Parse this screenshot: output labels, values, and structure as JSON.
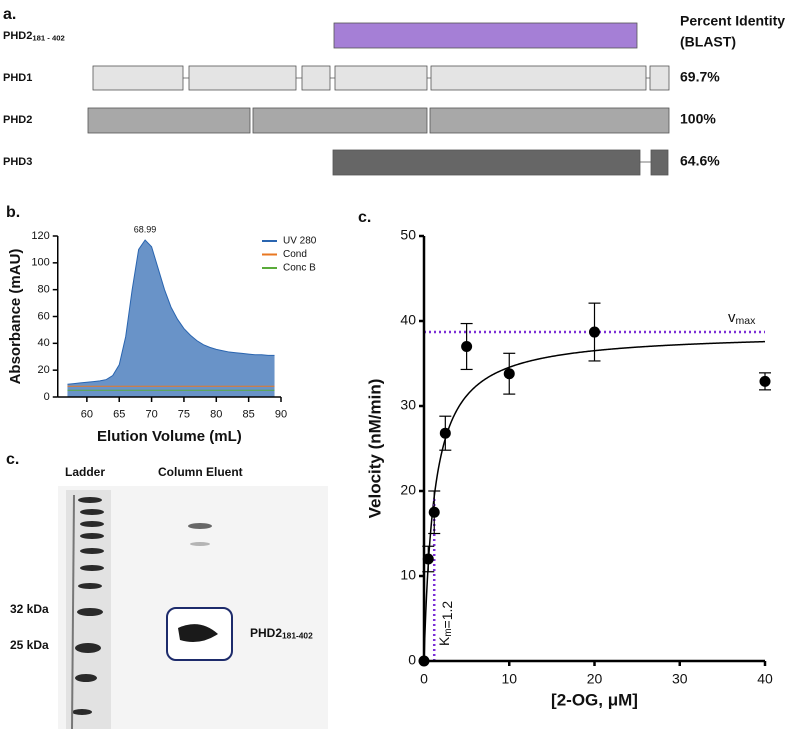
{
  "panel_labels": [
    "a.",
    "b.",
    "c.",
    "c."
  ],
  "domain_figure": {
    "header": [
      "Percent Identity",
      "(BLAST)"
    ],
    "rows": [
      {
        "name": "PHD2",
        "sub": "181 - 402"
      },
      {
        "name": "PHD1",
        "identity": "69.7%"
      },
      {
        "name": "PHD2",
        "identity": "100%"
      },
      {
        "name": "PHD3",
        "identity": "64.6%"
      }
    ]
  },
  "gel": {
    "columns": [
      "Ladder",
      "Column Eluent"
    ],
    "markers": [
      "32 kDa",
      "25 kDa"
    ],
    "band_label": {
      "name": "PHD2",
      "sub": "181-402"
    }
  },
  "chart_data": [
    {
      "type": "area",
      "x_label": "Elution Volume (mL)",
      "y_label": "Absorbance (mAU)",
      "xlim": [
        55.5,
        90
      ],
      "xticks": [
        60,
        65,
        70,
        75,
        80,
        85,
        90
      ],
      "ylim": [
        0,
        120
      ],
      "yticks": [
        0,
        20,
        40,
        60,
        80,
        100,
        120
      ],
      "legend": "upper right",
      "annotation": {
        "text": "68.99",
        "x": 68.99
      },
      "x": [
        57,
        58,
        59,
        60,
        61,
        62,
        63,
        64,
        65,
        66,
        67,
        68,
        69,
        70,
        71,
        72,
        73,
        74,
        75,
        76,
        77,
        78,
        79,
        80,
        81,
        82,
        83,
        84,
        85,
        86,
        87,
        88,
        89
      ],
      "series": [
        {
          "name": "UV 280",
          "color": "#2a65b0",
          "kind": "area",
          "values": [
            9.5,
            10,
            10.5,
            11,
            11.5,
            12,
            13,
            16,
            24,
            45,
            80,
            110,
            117,
            112,
            96,
            80,
            67,
            58,
            51,
            46,
            42,
            39,
            37,
            35.5,
            34.5,
            33.5,
            33,
            32.5,
            32,
            31.5,
            31.5,
            31,
            31
          ]
        },
        {
          "name": "Cond",
          "color": "#e87722",
          "kind": "line",
          "values": [
            8,
            8,
            8,
            8,
            8,
            8,
            8,
            8,
            8,
            8,
            8,
            8,
            8,
            8,
            8,
            8,
            8,
            8,
            8,
            8,
            8,
            8,
            8,
            8,
            8,
            8,
            8,
            8,
            8,
            8,
            8,
            8,
            8
          ]
        },
        {
          "name": "Conc B",
          "color": "#5aab3a",
          "kind": "line",
          "values": [
            5,
            5,
            5,
            5,
            5,
            5,
            5,
            5,
            5,
            5,
            5,
            5,
            5,
            5,
            5,
            5,
            5,
            5,
            5,
            5,
            5,
            5,
            5,
            5,
            5,
            5,
            5,
            5,
            5,
            5,
            5,
            5,
            5
          ]
        }
      ]
    },
    {
      "type": "scatter",
      "x_label": "[2-OG, μM]",
      "y_label": "Velocity (nM/min)",
      "xlim": [
        0,
        40
      ],
      "xticks": [
        0,
        10,
        20,
        30,
        40
      ],
      "ylim": [
        0,
        50
      ],
      "yticks": [
        0,
        10,
        20,
        30,
        40,
        50
      ],
      "x": [
        0,
        0.5,
        1.2,
        2.5,
        5,
        10,
        20,
        40
      ],
      "values": [
        0,
        12,
        17.5,
        26.8,
        37,
        33.8,
        38.7,
        32.9
      ],
      "errors": [
        0,
        1.5,
        2.5,
        2,
        2.7,
        2.4,
        3.4,
        1
      ],
      "color": "#000000",
      "fit": {
        "vmax": 38.7,
        "km": 1.2,
        "guide_color": "#7b2fd6"
      },
      "vmax_label": {
        "main": "v",
        "sub": "max"
      },
      "km_label": {
        "main": "K",
        "sub": "m",
        "rest": "=1.2"
      }
    }
  ]
}
